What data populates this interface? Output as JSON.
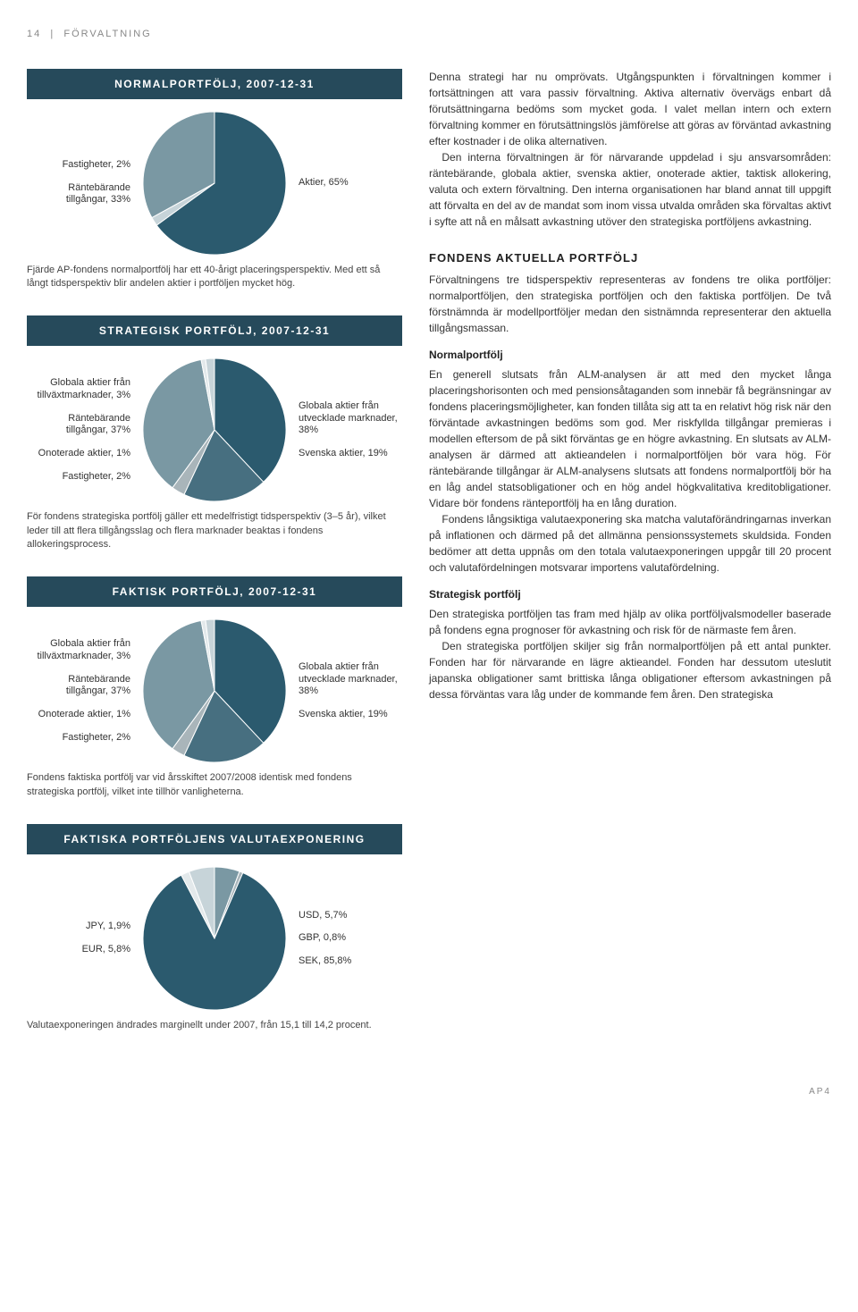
{
  "header": {
    "page_num": "14",
    "section": "FÖRVALTNING"
  },
  "footer": {
    "mark": "AP4"
  },
  "palette": {
    "bar_bg": "#264a5b",
    "bar_fg": "#ffffff",
    "slice_dark": "#2b5a6e",
    "slice_mid": "#7a98a3",
    "slice_light": "#c7d4d9",
    "slice_pale": "#e3e9eb",
    "slice_grey": "#a9b5ba",
    "text": "#333333"
  },
  "charts": {
    "normal": {
      "title": "NORMALPORTFÖLJ, 2007-12-31",
      "slices": [
        {
          "label": "Aktier, 65%",
          "value": 65,
          "color": "#2b5a6e",
          "side": "right"
        },
        {
          "label": "Fastigheter, 2%",
          "value": 2,
          "color": "#c7d4d9",
          "side": "left"
        },
        {
          "label": "Räntebärande tillgångar, 33%",
          "value": 33,
          "color": "#7a98a3",
          "side": "left"
        }
      ],
      "caption": "Fjärde AP-fondens normalportfölj har ett 40-årigt placeringsperspektiv. Med ett så långt tidsperspektiv blir andelen aktier i portföljen mycket hög."
    },
    "strategic": {
      "title": "STRATEGISK PORTFÖLJ, 2007-12-31",
      "slices": [
        {
          "label": "Globala aktier från utvecklade marknader, 38%",
          "value": 38,
          "color": "#2b5a6e",
          "side": "right"
        },
        {
          "label": "Svenska aktier, 19%",
          "value": 19,
          "color": "#476f80",
          "side": "right"
        },
        {
          "label": "Globala aktier från tillväxt­marknader, 3%",
          "value": 3,
          "color": "#a9b5ba",
          "side": "left"
        },
        {
          "label": "Räntebärande tillgångar, 37%",
          "value": 37,
          "color": "#7a98a3",
          "side": "left"
        },
        {
          "label": "Onoterade aktier, 1%",
          "value": 1,
          "color": "#e3e9eb",
          "side": "left"
        },
        {
          "label": "Fastigheter, 2%",
          "value": 2,
          "color": "#c7d4d9",
          "side": "left"
        }
      ],
      "caption": "För fondens strategiska portfölj gäller ett medelfristigt tidsperspektiv (3–5 år), vilket leder till att flera tillgångsslag och flera marknader beaktas i fondens allokeringsprocess."
    },
    "actual": {
      "title": "FAKTISK PORTFÖLJ, 2007-12-31",
      "slices": [
        {
          "label": "Globala aktier från utvecklade marknader, 38%",
          "value": 38,
          "color": "#2b5a6e",
          "side": "right"
        },
        {
          "label": "Svenska aktier, 19%",
          "value": 19,
          "color": "#476f80",
          "side": "right"
        },
        {
          "label": "Globala aktier från tillväxt­marknader, 3%",
          "value": 3,
          "color": "#a9b5ba",
          "side": "left"
        },
        {
          "label": "Räntebärande tillgångar, 37%",
          "value": 37,
          "color": "#7a98a3",
          "side": "left"
        },
        {
          "label": "Onoterade aktier, 1%",
          "value": 1,
          "color": "#e3e9eb",
          "side": "left"
        },
        {
          "label": "Fastigheter, 2%",
          "value": 2,
          "color": "#c7d4d9",
          "side": "left"
        }
      ],
      "caption": "Fondens faktiska portfölj var vid årsskiftet 2007/2008 identisk med fondens strategiska portfölj, vilket inte tillhör vanligheterna."
    },
    "currency": {
      "title": "FAKTISKA PORTFÖLJENS VALUTAEXPONERING",
      "slices": [
        {
          "label": "USD, 5,7%",
          "value": 5.7,
          "color": "#7a98a3",
          "side": "right"
        },
        {
          "label": "GBP, 0,8%",
          "value": 0.8,
          "color": "#a9b5ba",
          "side": "right"
        },
        {
          "label": "SEK, 85,8%",
          "value": 85.8,
          "color": "#2b5a6e",
          "side": "right"
        },
        {
          "label": "JPY, 1,9%",
          "value": 1.9,
          "color": "#e3e9eb",
          "side": "left"
        },
        {
          "label": "EUR, 5,8%",
          "value": 5.8,
          "color": "#c7d4d9",
          "side": "left"
        }
      ],
      "caption": "Valutaexponeringen ändrades marginellt under 2007, från 15,1 till 14,2 procent."
    }
  },
  "text": {
    "p1": "Denna strategi har nu omprövats. Utgångspunkten i förvaltningen kommer i fortsättningen att vara passiv förvaltning. Aktiva alternativ övervägs enbart då förutsättningarna bedöms som mycket goda. I valet mellan intern och extern förvaltning kommer en förutsättningslös jämförelse att göras av förväntad avkastning efter kostnader i de olika alternativen.",
    "p2": "Den interna förvaltningen är för närvarande uppdelad i sju ansvarsområden: räntebärande, globala aktier, svenska aktier, onoterade aktier, taktisk allokering, valuta och extern förvaltning. Den interna organisationen har bland annat till uppgift att förvalta en del av de mandat som inom vissa utvalda områden ska förvaltas aktivt i syfte att nå en målsatt avkastning utöver den strategiska portföljens avkastning.",
    "h1": "FONDENS AKTUELLA PORTFÖLJ",
    "p3": "Förvaltningens tre tidsperspektiv representeras av fondens tre olika portföljer: normalportföljen, den strategiska portföljen och den faktiska portföljen. De två förstnämnda är modellportföljer medan den sistnämnda representerar den aktuella tillgångsmassan.",
    "h2": "Normalportfölj",
    "p4": "En generell slutsats från ALM-analysen är att med den mycket långa placeringshorisonten och med pensionsåtaganden som innebär få begränsningar av fondens placeringsmöjligheter, kan fonden tillåta sig att ta en relativt hög risk när den förväntade avkastningen bedöms som god. Mer riskfyllda tillgångar premieras i modellen eftersom de på sikt förväntas ge en högre avkastning. En slutsats av ALM-analysen är därmed att aktieandelen i normalportföljen bör vara hög. För räntebärande tillgångar är ALM-analysens slutsats att fondens normalportfölj bör ha en låg andel statsobligationer och en hög andel högkvalitativa kreditobligationer. Vidare bör fondens ränteportfölj ha en lång duration.",
    "p5": "Fondens långsiktiga valutaexponering ska matcha valutaförändringarnas inverkan på inflationen och därmed på det allmänna pensionssystemets skuldsida. Fonden bedömer att detta uppnås om den totala valutaexponeringen uppgår till 20 procent och valutafördelningen motsvarar importens valutafördelning.",
    "h3": "Strategisk portfölj",
    "p6": "Den strategiska portföljen tas fram med hjälp av olika portföljvalsmodeller baserade på fondens egna prognoser för avkastning och risk för de närmaste fem åren.",
    "p7": "Den strategiska portföljen skiljer sig från normalportföljen på ett antal punkter. Fonden har för närvarande en lägre aktieandel. Fonden har dessutom uteslutit japanska obligationer samt brittiska långa obligationer eftersom avkastningen på dessa förväntas vara låg under de kommande fem åren. Den strategiska"
  }
}
